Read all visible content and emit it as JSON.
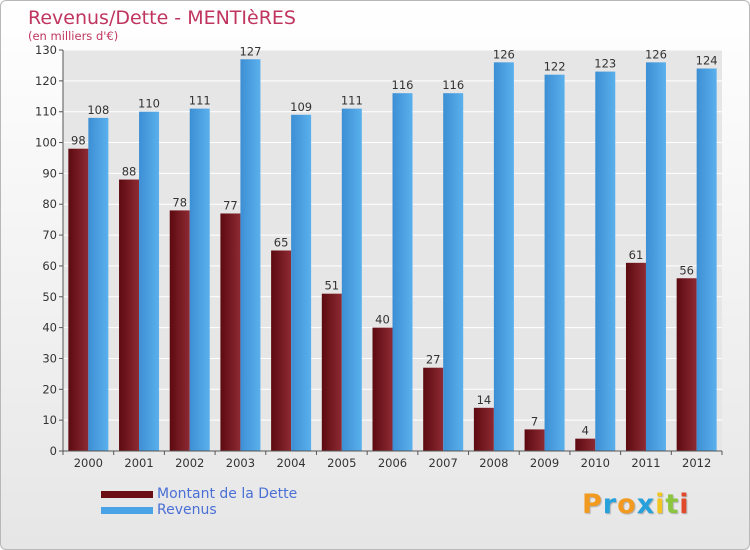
{
  "header": {
    "title": "Revenus/Dette - MENTIèRES",
    "subtitle": "(en milliers d'€)"
  },
  "chart_data": {
    "type": "bar",
    "title": "Revenus/Dette - MENTIèRES",
    "ylabel": "(en milliers d'€)",
    "ylim": [
      0,
      130
    ],
    "yticks": [
      0,
      10,
      20,
      30,
      40,
      50,
      60,
      70,
      80,
      90,
      100,
      110,
      120,
      130
    ],
    "grid": true,
    "legend_position": "bottom-left",
    "categories": [
      "2000",
      "2001",
      "2002",
      "2003",
      "2004",
      "2005",
      "2006",
      "2007",
      "2008",
      "2009",
      "2010",
      "2011",
      "2012"
    ],
    "series": [
      {
        "name": "Montant de la Dette",
        "color": "#7a1f28",
        "values": [
          98,
          88,
          78,
          77,
          65,
          51,
          40,
          27,
          14,
          7,
          4,
          61,
          56
        ]
      },
      {
        "name": "Revenus",
        "color": "#4aa3e6",
        "values": [
          108,
          110,
          111,
          127,
          109,
          111,
          116,
          116,
          126,
          122,
          123,
          126,
          124
        ]
      }
    ]
  },
  "legend": {
    "items": [
      {
        "label": "Montant de la Dette",
        "color": "#6b0f14"
      },
      {
        "label": "Revenus",
        "color": "#4aa3e6"
      }
    ]
  },
  "brand": {
    "letters": [
      "P",
      "r",
      "o",
      "x",
      "i",
      "t",
      "i"
    ],
    "colors": [
      "#f29a1f",
      "#27a1db",
      "#f29a1f",
      "#27a1db",
      "#f2c51f",
      "#8cc63f",
      "#e04a2a"
    ]
  }
}
